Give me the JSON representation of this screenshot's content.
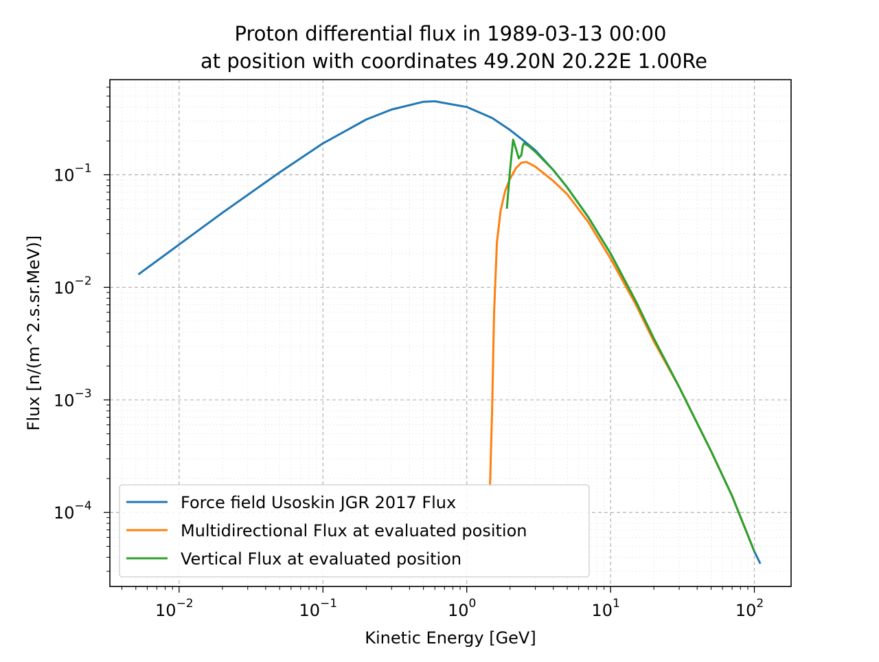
{
  "chart_data": {
    "type": "line",
    "title": "Proton differential flux in 1989-03-13 00:00",
    "subtitle": "at position with coordinates 49.20N 20.22E 1.00Re",
    "xlabel": "Kinetic Energy [GeV]",
    "ylabel": "Flux [n/(m^2.s.sr.MeV)]",
    "xscale": "log",
    "yscale": "log",
    "xlim": [
      0.0033,
      180
    ],
    "ylim": [
      2.2e-05,
      0.7
    ],
    "grid": true,
    "legend_position": "lower-left",
    "x_ticks": [
      {
        "value": 0.01,
        "base": "10",
        "exp": "−2"
      },
      {
        "value": 0.1,
        "base": "10",
        "exp": "−1"
      },
      {
        "value": 1,
        "base": "10",
        "exp": "0"
      },
      {
        "value": 10,
        "base": "10",
        "exp": "1"
      },
      {
        "value": 100,
        "base": "10",
        "exp": "2"
      }
    ],
    "y_ticks": [
      {
        "value": 0.0001,
        "base": "10",
        "exp": "−4"
      },
      {
        "value": 0.001,
        "base": "10",
        "exp": "−3"
      },
      {
        "value": 0.01,
        "base": "10",
        "exp": "−2"
      },
      {
        "value": 0.1,
        "base": "10",
        "exp": "−1"
      }
    ],
    "series": [
      {
        "name": "Force field Usoskin JGR 2017 Flux",
        "color": "#1f77b4",
        "x": [
          0.0052,
          0.01,
          0.02,
          0.05,
          0.1,
          0.2,
          0.3,
          0.5,
          0.6,
          1.0,
          1.5,
          2.0,
          2.5,
          3.0,
          4.0,
          5.0,
          7.0,
          10,
          15,
          20,
          30,
          50,
          70,
          100,
          110
        ],
        "y": [
          0.013,
          0.024,
          0.046,
          0.105,
          0.19,
          0.31,
          0.38,
          0.445,
          0.45,
          0.4,
          0.32,
          0.25,
          0.2,
          0.165,
          0.11,
          0.077,
          0.042,
          0.02,
          0.0075,
          0.0035,
          0.0013,
          0.00035,
          0.00014,
          4.5e-05,
          3.5e-05
        ]
      },
      {
        "name": "Multidirectional Flux at evaluated position",
        "color": "#ff7f0e",
        "x": [
          1.45,
          1.5,
          1.55,
          1.62,
          1.72,
          1.85,
          2.0,
          2.2,
          2.4,
          2.6,
          3.0,
          4.0,
          5.0,
          7.0,
          10,
          15,
          20,
          30,
          50,
          70,
          100
        ],
        "y": [
          0.00017,
          0.0008,
          0.006,
          0.025,
          0.048,
          0.072,
          0.092,
          0.115,
          0.128,
          0.13,
          0.118,
          0.088,
          0.067,
          0.038,
          0.018,
          0.007,
          0.0033,
          0.0013,
          0.00035,
          0.00014,
          4.5e-05
        ]
      },
      {
        "name": "Vertical Flux at evaluated position",
        "color": "#2ca02c",
        "x": [
          1.9,
          2.0,
          2.1,
          2.2,
          2.3,
          2.4,
          2.45,
          2.5,
          2.7,
          3.0,
          4.0,
          5.0,
          7.0,
          10,
          15,
          20,
          30,
          50,
          70,
          100
        ],
        "y": [
          0.05,
          0.11,
          0.205,
          0.17,
          0.14,
          0.15,
          0.18,
          0.19,
          0.18,
          0.16,
          0.11,
          0.077,
          0.042,
          0.02,
          0.0075,
          0.0035,
          0.0013,
          0.00035,
          0.00014,
          4.5e-05
        ]
      }
    ]
  }
}
